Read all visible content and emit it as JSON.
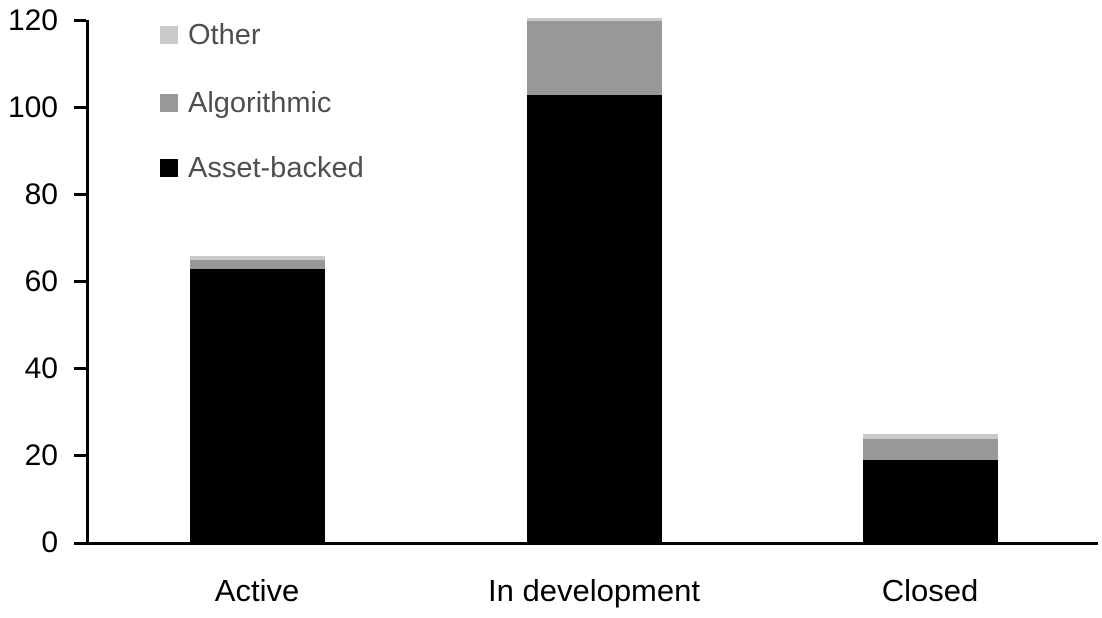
{
  "chart_data": {
    "type": "bar",
    "stacked": true,
    "title": "",
    "xlabel": "",
    "ylabel": "",
    "categories": [
      "Active",
      "In development",
      "Closed"
    ],
    "series": [
      {
        "name": "Asset-backed",
        "color": "#000000",
        "values": [
          63,
          103,
          19
        ]
      },
      {
        "name": "Algorithmic",
        "color": "#989898",
        "values": [
          2,
          17,
          5
        ]
      },
      {
        "name": "Other",
        "color": "#c9c9c9",
        "values": [
          1,
          0.5,
          1
        ]
      }
    ],
    "totals": [
      66,
      120.5,
      25
    ],
    "ylim": [
      0,
      120
    ],
    "yticks": [
      0,
      20,
      40,
      60,
      80,
      100,
      120
    ],
    "grid": false,
    "legend_position": "top-left",
    "legend_order_top_to_bottom": [
      "Other",
      "Algorithmic",
      "Asset-backed"
    ]
  },
  "colors": {
    "background": "#ffffff",
    "axis": "#000000",
    "tick_label": "#000000",
    "category_label": "#000000",
    "legend_text": "#4f4f4f"
  }
}
